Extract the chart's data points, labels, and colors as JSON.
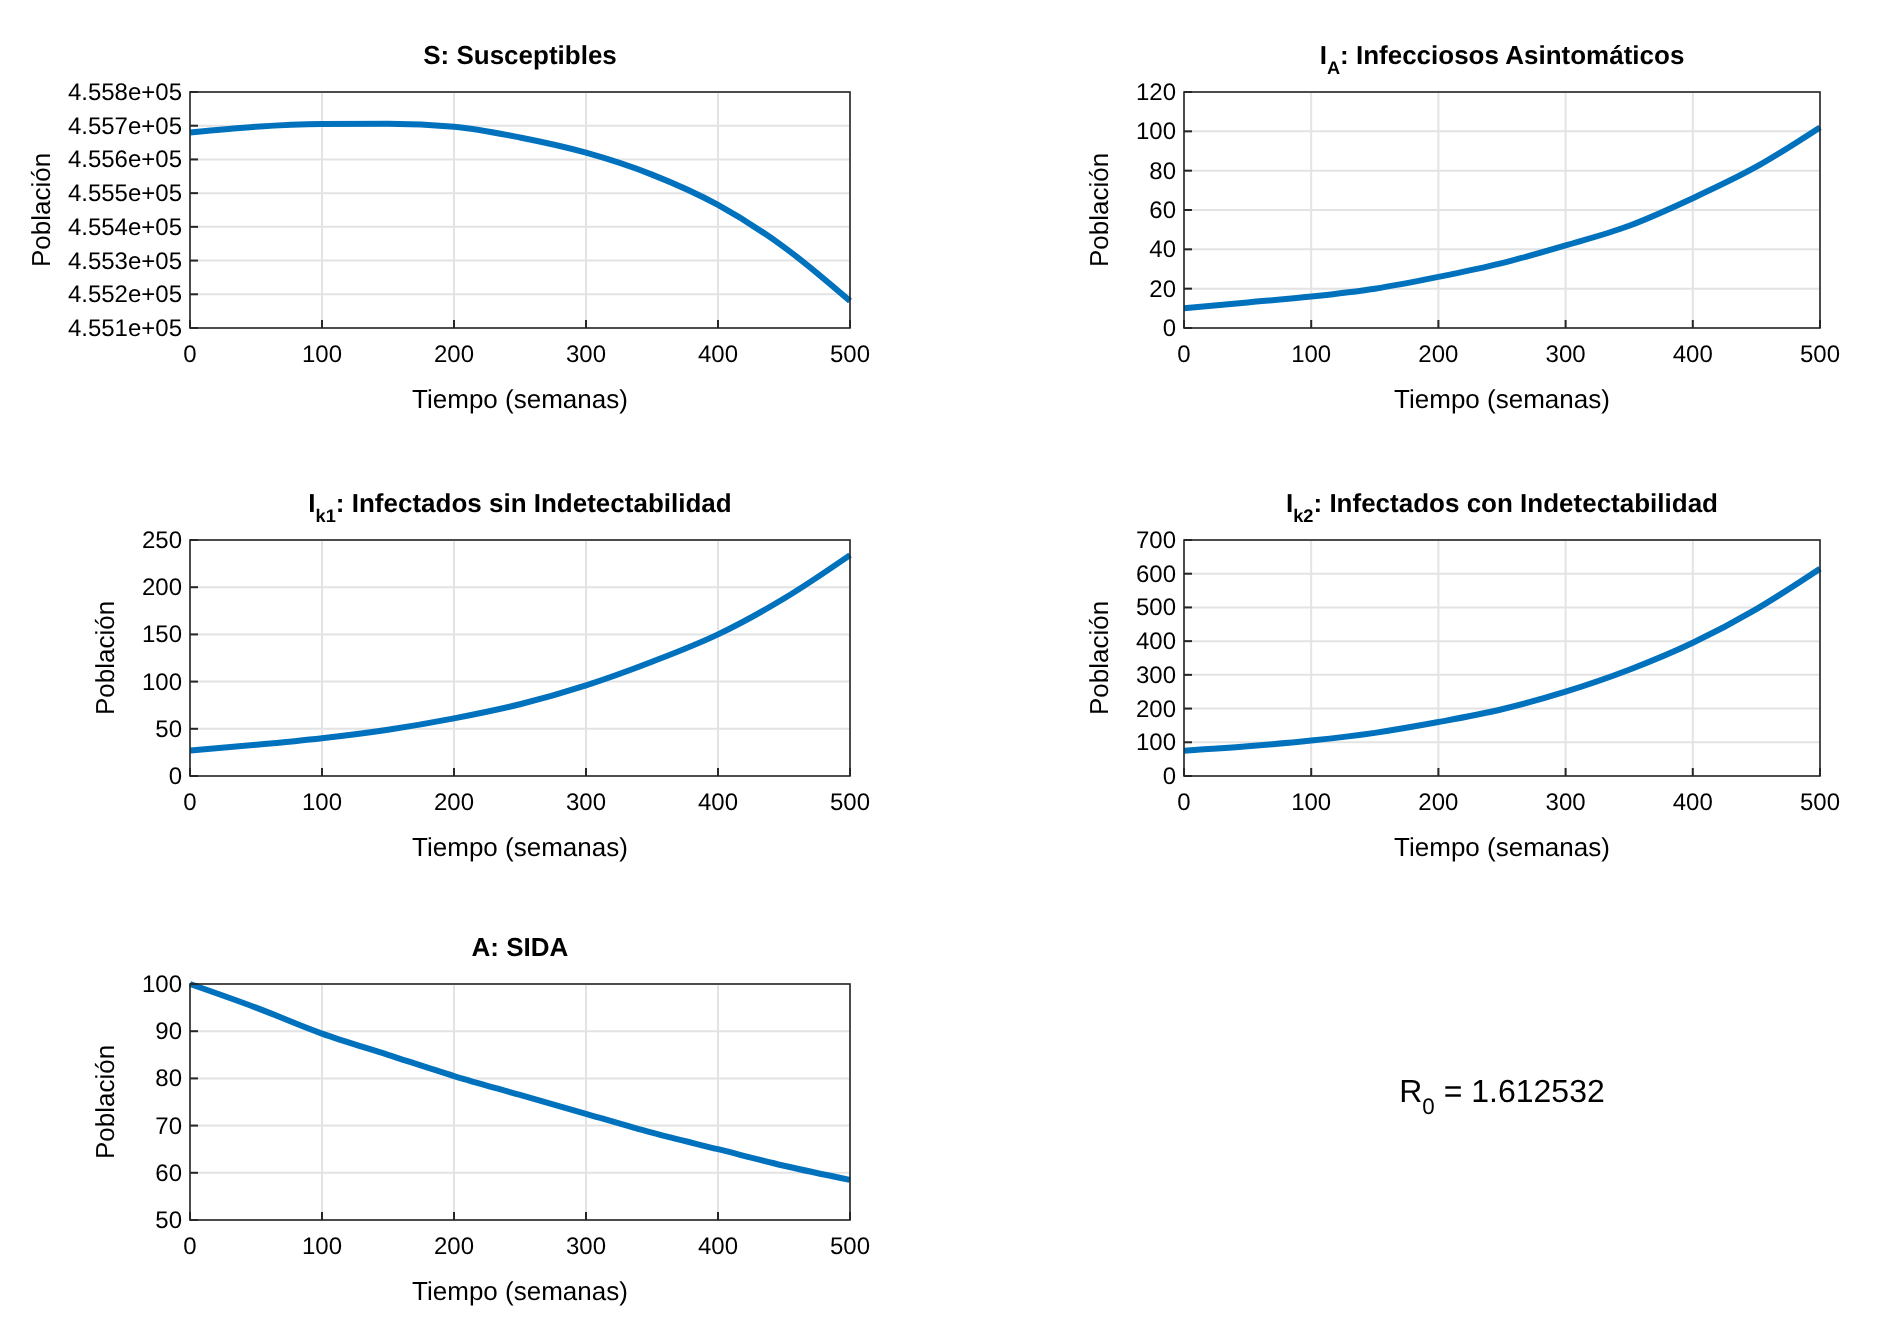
{
  "chart_data": [
    {
      "type": "line",
      "title": "S: Susceptibles",
      "xlabel": "Tiempo (semanas)",
      "ylabel": "Población",
      "x": [
        0,
        50,
        100,
        150,
        200,
        250,
        300,
        350,
        400,
        450,
        500
      ],
      "series": [
        {
          "color": "#0072bd",
          "values": [
            455680,
            455697,
            455705,
            455706,
            455697,
            455665,
            455620,
            455555,
            455465,
            455340,
            455180
          ]
        }
      ],
      "xlim": [
        0,
        500
      ],
      "xticks": [
        0,
        100,
        200,
        300,
        400,
        500
      ],
      "ylim": [
        455100,
        455800
      ],
      "yticks": [
        {
          "value": 455100,
          "label": "4.551e+05"
        },
        {
          "value": 455200,
          "label": "4.552e+05"
        },
        {
          "value": 455300,
          "label": "4.553e+05"
        },
        {
          "value": 455400,
          "label": "4.554e+05"
        },
        {
          "value": 455500,
          "label": "4.555e+05"
        },
        {
          "value": 455600,
          "label": "4.556e+05"
        },
        {
          "value": 455700,
          "label": "4.557e+05"
        },
        {
          "value": 455800,
          "label": "4.558e+05"
        }
      ],
      "grid": true
    },
    {
      "type": "line",
      "title": "I$_{A}$: Infecciosos Asintomáticos",
      "xlabel": "Tiempo (semanas)",
      "ylabel": "Población",
      "x": [
        0,
        50,
        100,
        150,
        200,
        250,
        300,
        350,
        400,
        450,
        500
      ],
      "series": [
        {
          "color": "#0072bd",
          "values": [
            10,
            13,
            16,
            20,
            26,
            33,
            42,
            52,
            66,
            82,
            102
          ]
        }
      ],
      "xlim": [
        0,
        500
      ],
      "xticks": [
        0,
        100,
        200,
        300,
        400,
        500
      ],
      "ylim": [
        0,
        120
      ],
      "yticks": [
        0,
        20,
        40,
        60,
        80,
        100,
        120
      ],
      "grid": true
    },
    {
      "type": "line",
      "title": "I$_{k1}$: Infectados sin Indetectabilidad",
      "xlabel": "Tiempo (semanas)",
      "ylabel": "Población",
      "x": [
        0,
        50,
        100,
        150,
        200,
        250,
        300,
        350,
        400,
        450,
        500
      ],
      "series": [
        {
          "color": "#0072bd",
          "values": [
            27,
            33,
            40,
            49,
            61,
            76,
            96,
            121,
            150,
            188,
            234
          ]
        }
      ],
      "xlim": [
        0,
        500
      ],
      "xticks": [
        0,
        100,
        200,
        300,
        400,
        500
      ],
      "ylim": [
        0,
        250
      ],
      "yticks": [
        0,
        50,
        100,
        150,
        200,
        250
      ],
      "grid": true
    },
    {
      "type": "line",
      "title": "I$_{k2}$: Infectados con Indetectabilidad",
      "xlabel": "Tiempo (semanas)",
      "ylabel": "Población",
      "x": [
        0,
        50,
        100,
        150,
        200,
        250,
        300,
        350,
        400,
        450,
        500
      ],
      "series": [
        {
          "color": "#0072bd",
          "values": [
            75,
            88,
            105,
            128,
            160,
            198,
            250,
            315,
            395,
            495,
            615
          ]
        }
      ],
      "xlim": [
        0,
        500
      ],
      "xticks": [
        0,
        100,
        200,
        300,
        400,
        500
      ],
      "ylim": [
        0,
        700
      ],
      "yticks": [
        0,
        100,
        200,
        300,
        400,
        500,
        600,
        700
      ],
      "grid": true
    },
    {
      "type": "line",
      "title": "A: SIDA",
      "xlabel": "Tiempo (semanas)",
      "ylabel": "Población",
      "x": [
        0,
        50,
        100,
        150,
        200,
        250,
        300,
        350,
        400,
        450,
        500
      ],
      "series": [
        {
          "color": "#0072bd",
          "values": [
            100,
            95,
            89.5,
            85,
            80.5,
            76.5,
            72.5,
            68.5,
            65,
            61.5,
            58.5
          ]
        }
      ],
      "xlim": [
        0,
        500
      ],
      "xticks": [
        0,
        100,
        200,
        300,
        400,
        500
      ],
      "ylim": [
        50,
        100
      ],
      "yticks": [
        50,
        60,
        70,
        80,
        90,
        100
      ],
      "grid": true
    },
    {
      "type": "other",
      "annotations": [
        "R$_{0}$ = 1.612532"
      ]
    }
  ]
}
